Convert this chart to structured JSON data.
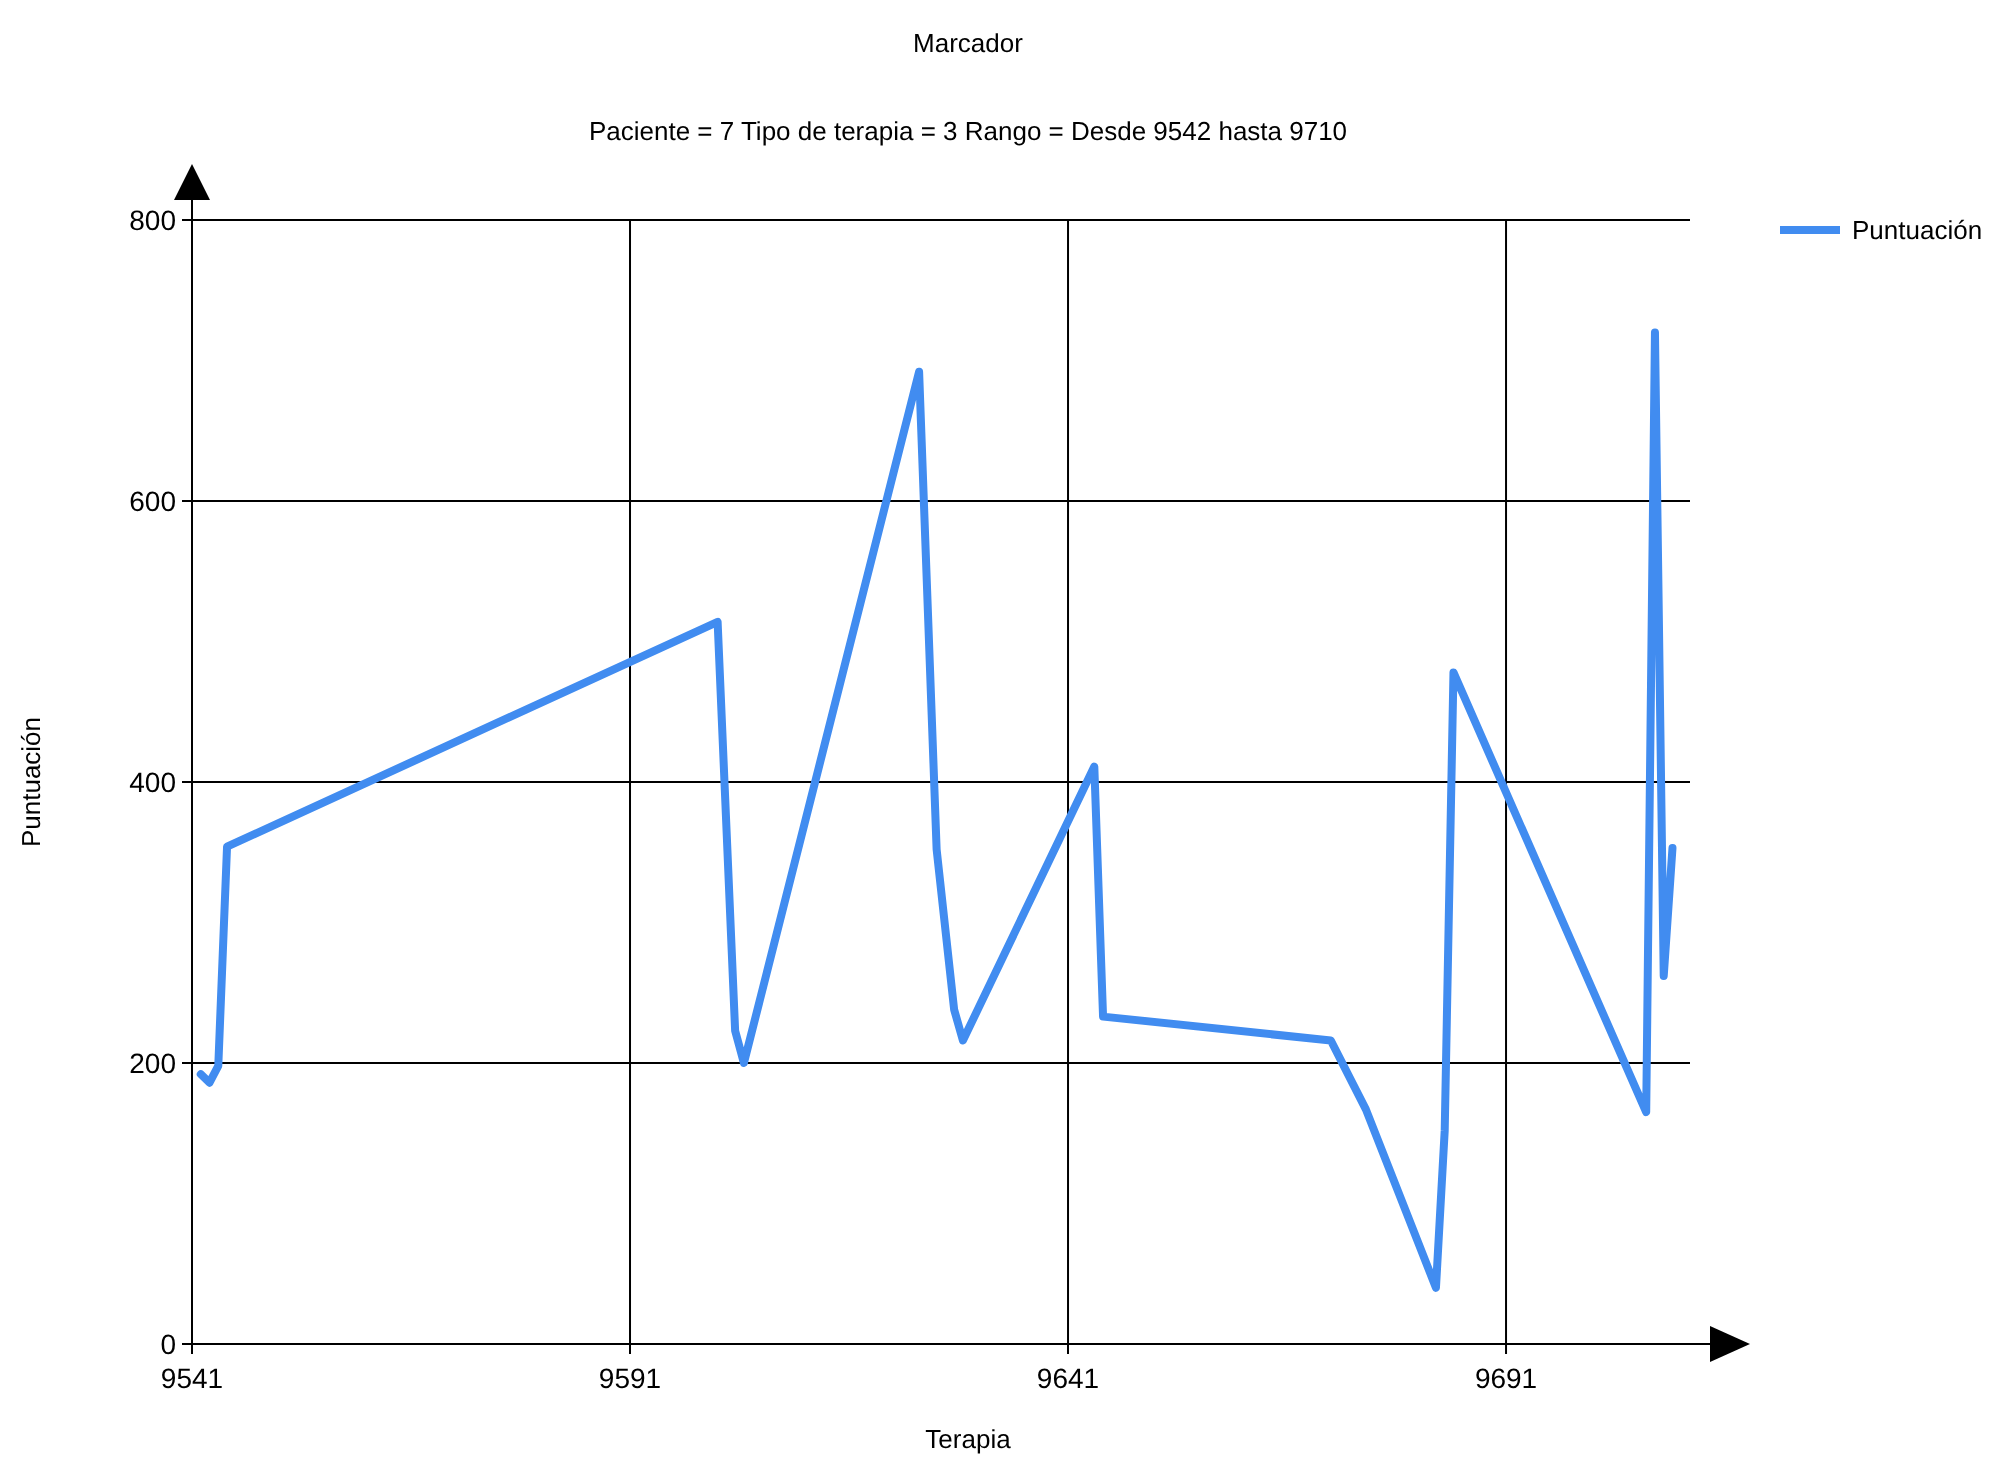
{
  "chart_data": {
    "type": "line",
    "title": "Marcador",
    "subtitle": "Paciente = 7 Tipo de terapia = 3 Rango = Desde 9542 hasta 9710",
    "xlabel": "Terapia",
    "ylabel": "Puntuación",
    "x": [
      9542,
      9543,
      9544,
      9545,
      9601,
      9603,
      9604,
      9624,
      9626,
      9628,
      9629,
      9644,
      9645,
      9671,
      9675,
      9683,
      9684,
      9685,
      9707,
      9708,
      9709,
      9710
    ],
    "series": [
      {
        "name": "Puntuación",
        "color": "#418cf0",
        "values": [
          192,
          186,
          198,
          354,
          514,
          223,
          200,
          692,
          352,
          238,
          216,
          411,
          233,
          216,
          167,
          40,
          152,
          478,
          165,
          720,
          262,
          353
        ]
      }
    ],
    "xlim": [
      9541,
      9712
    ],
    "xticks": [
      9541,
      9591,
      9641,
      9691
    ],
    "ylim": [
      0,
      800
    ],
    "yticks": [
      0,
      200,
      400,
      600,
      800
    ],
    "grid": true,
    "legend": "top right",
    "line_style": "solid",
    "marker": "none"
  }
}
